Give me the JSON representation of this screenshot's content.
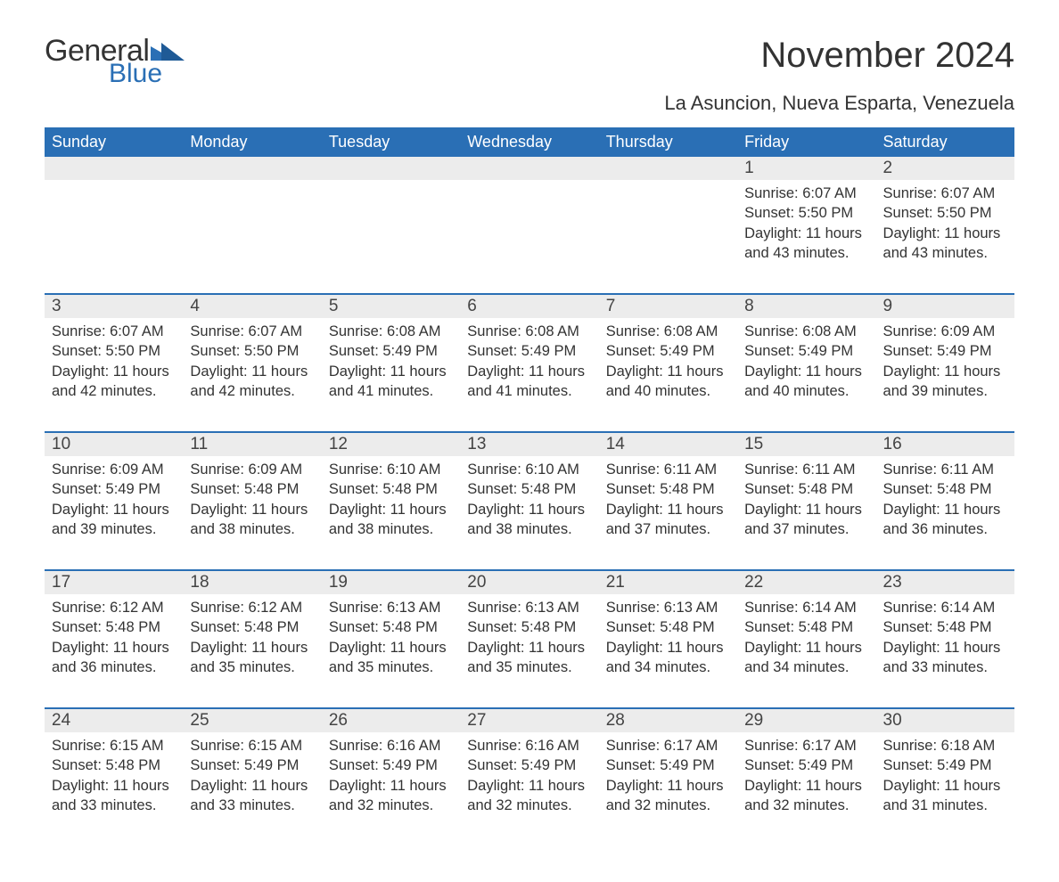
{
  "logo": {
    "word1": "General",
    "word2": "Blue",
    "text_color": "#333333",
    "blue_color": "#2a6fb5"
  },
  "title": "November 2024",
  "location": "La Asuncion, Nueva Esparta, Venezuela",
  "colors": {
    "header_bg": "#2a6fb5",
    "header_text": "#ffffff",
    "dayrow_bg": "#ececec",
    "divider": "#2a6fb5",
    "body_text": "#333333",
    "page_bg": "#ffffff"
  },
  "fonts": {
    "title_size_pt": 30,
    "location_size_pt": 16,
    "header_size_pt": 14,
    "daynum_size_pt": 14,
    "detail_size_pt": 12
  },
  "day_headers": [
    "Sunday",
    "Monday",
    "Tuesday",
    "Wednesday",
    "Thursday",
    "Friday",
    "Saturday"
  ],
  "weeks": [
    [
      null,
      null,
      null,
      null,
      null,
      {
        "n": "1",
        "sunrise": "Sunrise: 6:07 AM",
        "sunset": "Sunset: 5:50 PM",
        "day1": "Daylight: 11 hours",
        "day2": "and 43 minutes."
      },
      {
        "n": "2",
        "sunrise": "Sunrise: 6:07 AM",
        "sunset": "Sunset: 5:50 PM",
        "day1": "Daylight: 11 hours",
        "day2": "and 43 minutes."
      }
    ],
    [
      {
        "n": "3",
        "sunrise": "Sunrise: 6:07 AM",
        "sunset": "Sunset: 5:50 PM",
        "day1": "Daylight: 11 hours",
        "day2": "and 42 minutes."
      },
      {
        "n": "4",
        "sunrise": "Sunrise: 6:07 AM",
        "sunset": "Sunset: 5:50 PM",
        "day1": "Daylight: 11 hours",
        "day2": "and 42 minutes."
      },
      {
        "n": "5",
        "sunrise": "Sunrise: 6:08 AM",
        "sunset": "Sunset: 5:49 PM",
        "day1": "Daylight: 11 hours",
        "day2": "and 41 minutes."
      },
      {
        "n": "6",
        "sunrise": "Sunrise: 6:08 AM",
        "sunset": "Sunset: 5:49 PM",
        "day1": "Daylight: 11 hours",
        "day2": "and 41 minutes."
      },
      {
        "n": "7",
        "sunrise": "Sunrise: 6:08 AM",
        "sunset": "Sunset: 5:49 PM",
        "day1": "Daylight: 11 hours",
        "day2": "and 40 minutes."
      },
      {
        "n": "8",
        "sunrise": "Sunrise: 6:08 AM",
        "sunset": "Sunset: 5:49 PM",
        "day1": "Daylight: 11 hours",
        "day2": "and 40 minutes."
      },
      {
        "n": "9",
        "sunrise": "Sunrise: 6:09 AM",
        "sunset": "Sunset: 5:49 PM",
        "day1": "Daylight: 11 hours",
        "day2": "and 39 minutes."
      }
    ],
    [
      {
        "n": "10",
        "sunrise": "Sunrise: 6:09 AM",
        "sunset": "Sunset: 5:49 PM",
        "day1": "Daylight: 11 hours",
        "day2": "and 39 minutes."
      },
      {
        "n": "11",
        "sunrise": "Sunrise: 6:09 AM",
        "sunset": "Sunset: 5:48 PM",
        "day1": "Daylight: 11 hours",
        "day2": "and 38 minutes."
      },
      {
        "n": "12",
        "sunrise": "Sunrise: 6:10 AM",
        "sunset": "Sunset: 5:48 PM",
        "day1": "Daylight: 11 hours",
        "day2": "and 38 minutes."
      },
      {
        "n": "13",
        "sunrise": "Sunrise: 6:10 AM",
        "sunset": "Sunset: 5:48 PM",
        "day1": "Daylight: 11 hours",
        "day2": "and 38 minutes."
      },
      {
        "n": "14",
        "sunrise": "Sunrise: 6:11 AM",
        "sunset": "Sunset: 5:48 PM",
        "day1": "Daylight: 11 hours",
        "day2": "and 37 minutes."
      },
      {
        "n": "15",
        "sunrise": "Sunrise: 6:11 AM",
        "sunset": "Sunset: 5:48 PM",
        "day1": "Daylight: 11 hours",
        "day2": "and 37 minutes."
      },
      {
        "n": "16",
        "sunrise": "Sunrise: 6:11 AM",
        "sunset": "Sunset: 5:48 PM",
        "day1": "Daylight: 11 hours",
        "day2": "and 36 minutes."
      }
    ],
    [
      {
        "n": "17",
        "sunrise": "Sunrise: 6:12 AM",
        "sunset": "Sunset: 5:48 PM",
        "day1": "Daylight: 11 hours",
        "day2": "and 36 minutes."
      },
      {
        "n": "18",
        "sunrise": "Sunrise: 6:12 AM",
        "sunset": "Sunset: 5:48 PM",
        "day1": "Daylight: 11 hours",
        "day2": "and 35 minutes."
      },
      {
        "n": "19",
        "sunrise": "Sunrise: 6:13 AM",
        "sunset": "Sunset: 5:48 PM",
        "day1": "Daylight: 11 hours",
        "day2": "and 35 minutes."
      },
      {
        "n": "20",
        "sunrise": "Sunrise: 6:13 AM",
        "sunset": "Sunset: 5:48 PM",
        "day1": "Daylight: 11 hours",
        "day2": "and 35 minutes."
      },
      {
        "n": "21",
        "sunrise": "Sunrise: 6:13 AM",
        "sunset": "Sunset: 5:48 PM",
        "day1": "Daylight: 11 hours",
        "day2": "and 34 minutes."
      },
      {
        "n": "22",
        "sunrise": "Sunrise: 6:14 AM",
        "sunset": "Sunset: 5:48 PM",
        "day1": "Daylight: 11 hours",
        "day2": "and 34 minutes."
      },
      {
        "n": "23",
        "sunrise": "Sunrise: 6:14 AM",
        "sunset": "Sunset: 5:48 PM",
        "day1": "Daylight: 11 hours",
        "day2": "and 33 minutes."
      }
    ],
    [
      {
        "n": "24",
        "sunrise": "Sunrise: 6:15 AM",
        "sunset": "Sunset: 5:48 PM",
        "day1": "Daylight: 11 hours",
        "day2": "and 33 minutes."
      },
      {
        "n": "25",
        "sunrise": "Sunrise: 6:15 AM",
        "sunset": "Sunset: 5:49 PM",
        "day1": "Daylight: 11 hours",
        "day2": "and 33 minutes."
      },
      {
        "n": "26",
        "sunrise": "Sunrise: 6:16 AM",
        "sunset": "Sunset: 5:49 PM",
        "day1": "Daylight: 11 hours",
        "day2": "and 32 minutes."
      },
      {
        "n": "27",
        "sunrise": "Sunrise: 6:16 AM",
        "sunset": "Sunset: 5:49 PM",
        "day1": "Daylight: 11 hours",
        "day2": "and 32 minutes."
      },
      {
        "n": "28",
        "sunrise": "Sunrise: 6:17 AM",
        "sunset": "Sunset: 5:49 PM",
        "day1": "Daylight: 11 hours",
        "day2": "and 32 minutes."
      },
      {
        "n": "29",
        "sunrise": "Sunrise: 6:17 AM",
        "sunset": "Sunset: 5:49 PM",
        "day1": "Daylight: 11 hours",
        "day2": "and 32 minutes."
      },
      {
        "n": "30",
        "sunrise": "Sunrise: 6:18 AM",
        "sunset": "Sunset: 5:49 PM",
        "day1": "Daylight: 11 hours",
        "day2": "and 31 minutes."
      }
    ]
  ]
}
